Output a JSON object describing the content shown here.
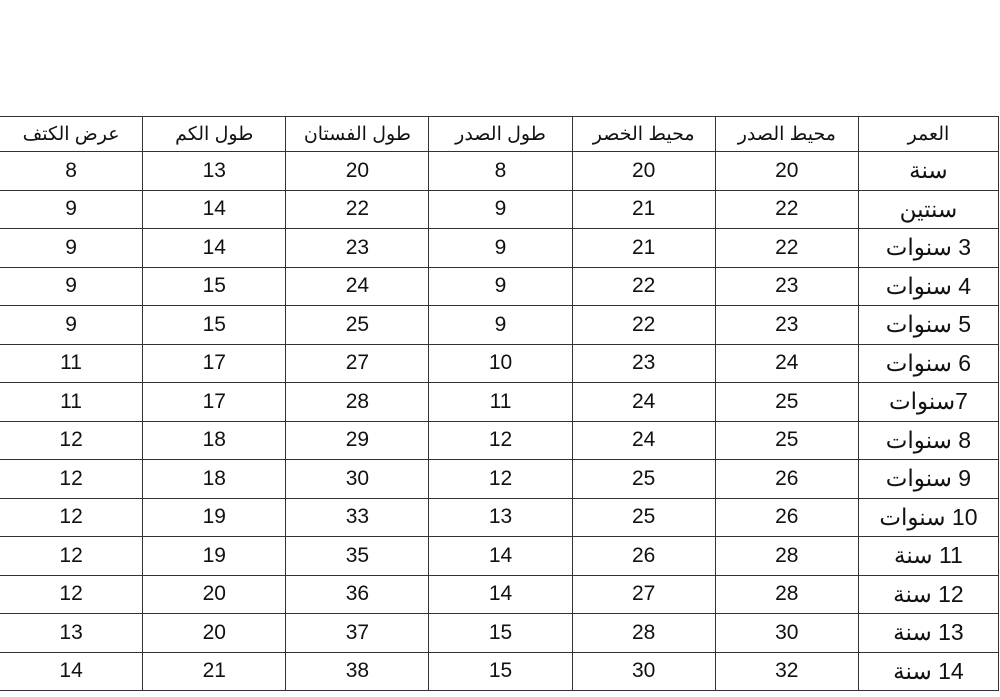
{
  "table": {
    "headers": [
      "العمر",
      "محيط الصدر",
      "محيط الخصر",
      "طول الصدر",
      "طول الفستان",
      "طول الكم",
      "عرض الكتف"
    ],
    "rows": [
      [
        "سنة",
        "20",
        "20",
        "8",
        "20",
        "13",
        "8"
      ],
      [
        "سنتين",
        "22",
        "21",
        "9",
        "22",
        "14",
        "9"
      ],
      [
        "3 سنوات",
        "22",
        "21",
        "9",
        "23",
        "14",
        "9"
      ],
      [
        "4 سنوات",
        "23",
        "22",
        "9",
        "24",
        "15",
        "9"
      ],
      [
        "5 سنوات",
        "23",
        "22",
        "9",
        "25",
        "15",
        "9"
      ],
      [
        "6 سنوات",
        "24",
        "23",
        "10",
        "27",
        "17",
        "11"
      ],
      [
        "7سنوات",
        "25",
        "24",
        "11",
        "28",
        "17",
        "11"
      ],
      [
        "8 سنوات",
        "25",
        "24",
        "12",
        "29",
        "18",
        "12"
      ],
      [
        "9 سنوات",
        "26",
        "25",
        "12",
        "30",
        "18",
        "12"
      ],
      [
        "10 سنوات",
        "26",
        "25",
        "13",
        "33",
        "19",
        "12"
      ],
      [
        "11 سنة",
        "28",
        "26",
        "14",
        "35",
        "19",
        "12"
      ],
      [
        "12 سنة",
        "28",
        "27",
        "14",
        "36",
        "20",
        "12"
      ],
      [
        "13 سنة",
        "30",
        "28",
        "15",
        "37",
        "20",
        "13"
      ],
      [
        "14 سنة",
        "32",
        "30",
        "15",
        "38",
        "21",
        "14"
      ]
    ]
  }
}
